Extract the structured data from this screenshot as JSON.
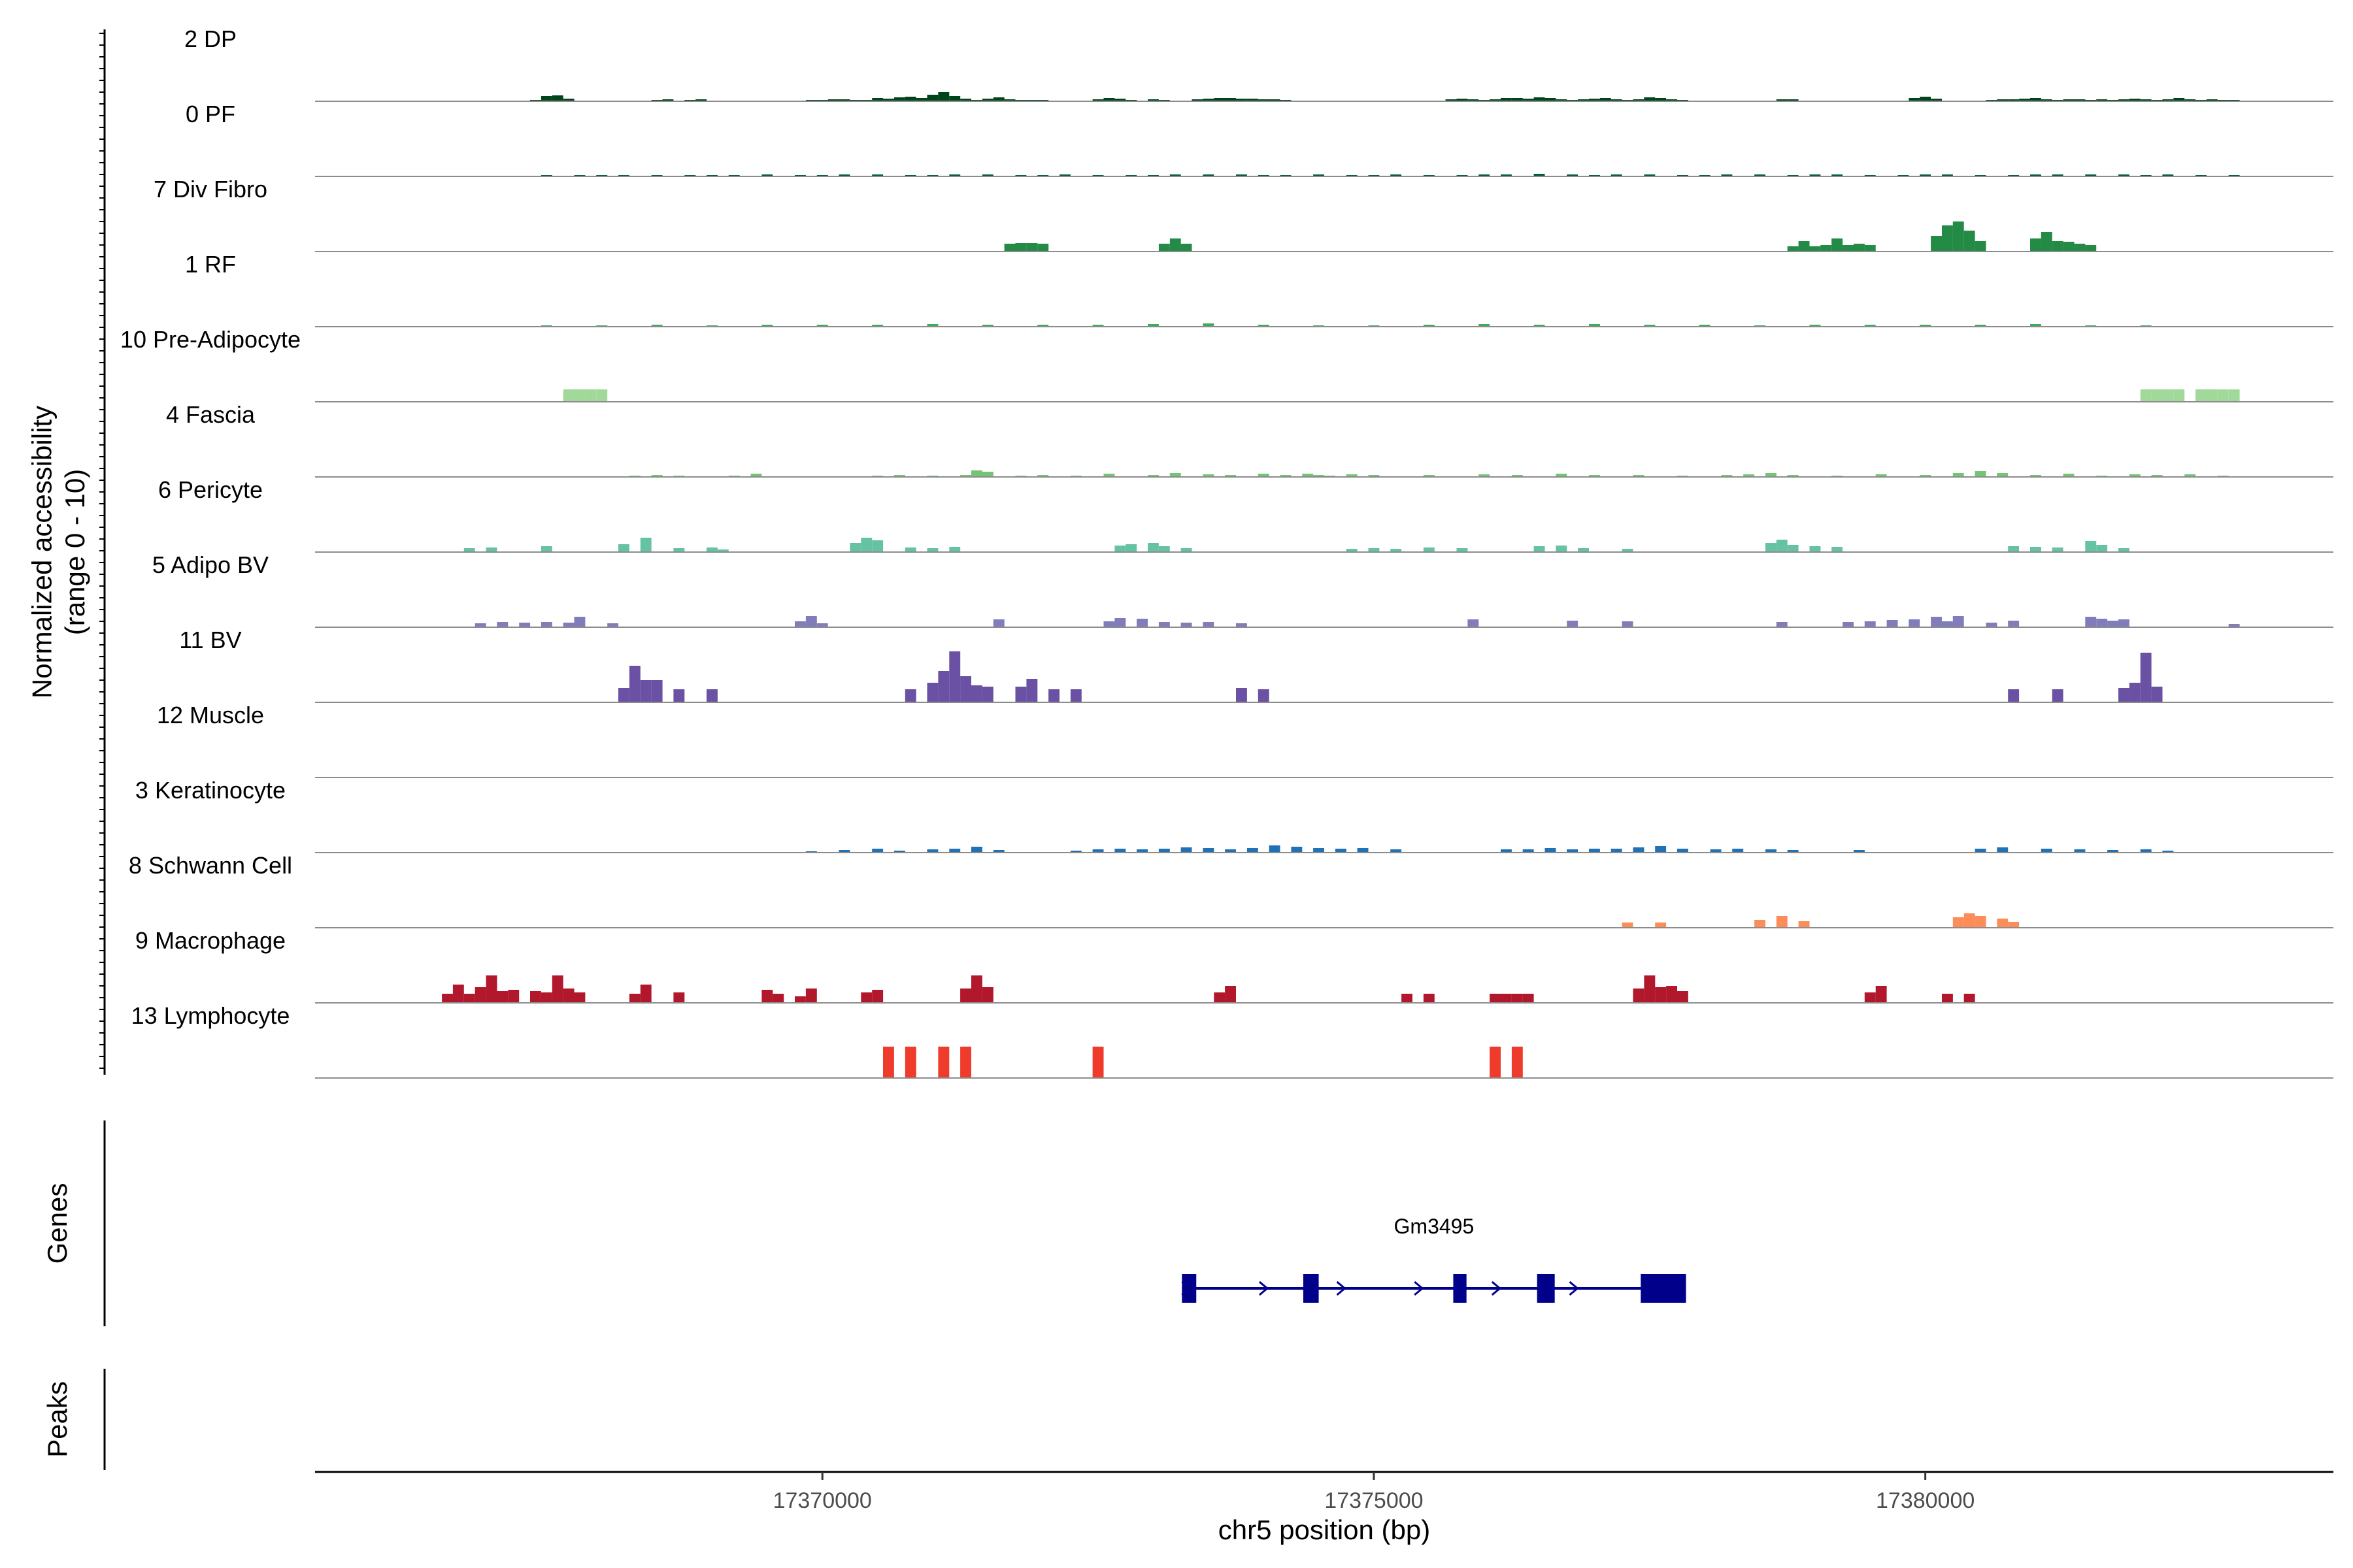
{
  "chart_data": {
    "type": "area",
    "ylabel": "Normalized accessibility\n(range 0 - 10)",
    "xlabel": "chr5 position (bp)",
    "xlim": [
      17365400,
      17383700
    ],
    "ylim": [
      0,
      10
    ],
    "x_ticks": [
      {
        "value": 17370000,
        "label": "17370000"
      },
      {
        "value": 17375000,
        "label": "17375000"
      },
      {
        "value": 17380000,
        "label": "17380000"
      }
    ],
    "panels": {
      "genes": "Genes",
      "peaks": "Peaks"
    },
    "genes": [
      {
        "name": "Gm3495",
        "strand": "+",
        "start": 17373260,
        "end": 17377830,
        "exons": [
          [
            17373260,
            17373390
          ],
          [
            17374360,
            17374500
          ],
          [
            17375720,
            17375840
          ],
          [
            17376480,
            17376640
          ],
          [
            17377420,
            17377830
          ]
        ],
        "color": "#00008b"
      }
    ],
    "series": [
      {
        "name": "2 DP",
        "color": "#00441b",
        "x": [
          17367400,
          17367500,
          17367600,
          17367700,
          17368500,
          17368600,
          17368800,
          17368900,
          17369900,
          17370000,
          17370100,
          17370200,
          17370300,
          17370400,
          17370500,
          17370600,
          17370700,
          17370800,
          17370900,
          17371000,
          17371100,
          17371200,
          17371300,
          17371400,
          17371500,
          17371600,
          17371700,
          17371800,
          17371900,
          17372000,
          17372500,
          17372600,
          17372700,
          17372800,
          17373000,
          17373100,
          17373400,
          17373500,
          17373600,
          17373700,
          17373800,
          17373900,
          17374000,
          17374100,
          17374200,
          17375700,
          17375800,
          17375900,
          17376000,
          17376100,
          17376200,
          17376300,
          17376400,
          17376500,
          17376600,
          17376700,
          17376800,
          17376900,
          17377000,
          17377100,
          17377200,
          17377300,
          17377400,
          17377500,
          17377600,
          17377700,
          17377800,
          17378700,
          17378800,
          17379900,
          17380000,
          17380100,
          17380600,
          17380700,
          17380800,
          17380900,
          17381000,
          17381100,
          17381200,
          17381300,
          17381400,
          17381500,
          17381600,
          17381700,
          17381800,
          17381900,
          17382000,
          17382100,
          17382200,
          17382300,
          17382400,
          17382500,
          17382600,
          17382700,
          17382800
        ],
        "y": [
          0.2,
          0.8,
          0.9,
          0.4,
          0.2,
          0.3,
          0.2,
          0.3,
          0.2,
          0.2,
          0.3,
          0.3,
          0.2,
          0.2,
          0.5,
          0.4,
          0.6,
          0.7,
          0.5,
          1.0,
          1.4,
          0.8,
          0.4,
          0.2,
          0.4,
          0.6,
          0.3,
          0.2,
          0.2,
          0.2,
          0.3,
          0.5,
          0.4,
          0.2,
          0.3,
          0.2,
          0.3,
          0.4,
          0.5,
          0.5,
          0.4,
          0.4,
          0.3,
          0.3,
          0.2,
          0.3,
          0.4,
          0.3,
          0.2,
          0.3,
          0.5,
          0.5,
          0.4,
          0.6,
          0.5,
          0.3,
          0.2,
          0.3,
          0.4,
          0.5,
          0.3,
          0.2,
          0.3,
          0.6,
          0.5,
          0.3,
          0.2,
          0.3,
          0.3,
          0.5,
          0.7,
          0.4,
          0.2,
          0.3,
          0.3,
          0.4,
          0.5,
          0.3,
          0.2,
          0.3,
          0.3,
          0.2,
          0.3,
          0.2,
          0.3,
          0.4,
          0.3,
          0.2,
          0.3,
          0.5,
          0.3,
          0.2,
          0.3,
          0.2,
          0.2
        ]
      },
      {
        "name": "0 PF",
        "color": "#005a32",
        "x": [
          17366300,
          17366500,
          17366800,
          17367000,
          17367500,
          17367800,
          17368000,
          17368200,
          17368500,
          17368800,
          17369000,
          17369200,
          17369500,
          17369800,
          17370000,
          17370200,
          17370500,
          17370800,
          17371000,
          17371200,
          17371500,
          17371800,
          17372000,
          17372200,
          17372500,
          17372800,
          17373000,
          17373200,
          17373500,
          17373800,
          17374000,
          17374200,
          17374500,
          17374800,
          17375000,
          17375200,
          17375500,
          17375800,
          17376000,
          17376200,
          17376500,
          17376800,
          17377000,
          17377200,
          17377500,
          17377800,
          17378000,
          17378200,
          17378500,
          17378800,
          17379000,
          17379200,
          17379500,
          17379800,
          17380000,
          17380200,
          17380500,
          17380800,
          17381000,
          17381200,
          17381500,
          17381800,
          17382000,
          17382200,
          17382500,
          17382800
        ],
        "y": [
          0.1,
          0.1,
          0.1,
          0.1,
          0.2,
          0.2,
          0.2,
          0.2,
          0.2,
          0.2,
          0.2,
          0.2,
          0.3,
          0.2,
          0.2,
          0.3,
          0.3,
          0.2,
          0.2,
          0.3,
          0.3,
          0.2,
          0.2,
          0.3,
          0.2,
          0.2,
          0.2,
          0.3,
          0.3,
          0.3,
          0.2,
          0.2,
          0.3,
          0.2,
          0.2,
          0.3,
          0.2,
          0.2,
          0.3,
          0.3,
          0.4,
          0.3,
          0.2,
          0.3,
          0.3,
          0.2,
          0.2,
          0.3,
          0.3,
          0.2,
          0.3,
          0.3,
          0.2,
          0.2,
          0.3,
          0.3,
          0.2,
          0.2,
          0.3,
          0.3,
          0.3,
          0.3,
          0.2,
          0.3,
          0.2,
          0.2
        ]
      },
      {
        "name": "7 Div Fibro",
        "color": "#238b45",
        "x": [
          17371700,
          17371800,
          17371900,
          17372000,
          17373100,
          17373200,
          17373300,
          17378800,
          17378900,
          17379000,
          17379100,
          17379200,
          17379300,
          17379400,
          17379500,
          17380100,
          17380200,
          17380300,
          17380400,
          17380500,
          17381000,
          17381100,
          17381200,
          17381300,
          17381400,
          17381500
        ],
        "y": [
          1.2,
          1.3,
          1.3,
          1.2,
          1.2,
          2.0,
          1.2,
          0.8,
          1.6,
          0.8,
          1.0,
          2.0,
          1.0,
          1.2,
          1.0,
          2.4,
          4.0,
          4.6,
          3.2,
          1.6,
          2.0,
          3.0,
          1.6,
          1.5,
          1.2,
          1.0
        ]
      },
      {
        "name": "1 RF",
        "color": "#41ab5d",
        "x": [
          17367000,
          17367500,
          17368000,
          17368500,
          17369000,
          17369500,
          17370000,
          17370500,
          17371000,
          17371500,
          17372000,
          17372500,
          17373000,
          17373500,
          17374000,
          17374500,
          17375000,
          17375500,
          17376000,
          17376500,
          17377000,
          17377500,
          17378000,
          17378500,
          17379000,
          17379500,
          17380000,
          17380500,
          17381000,
          17381500,
          17382000
        ],
        "y": [
          0.1,
          0.2,
          0.2,
          0.3,
          0.2,
          0.3,
          0.3,
          0.3,
          0.4,
          0.3,
          0.3,
          0.3,
          0.4,
          0.5,
          0.3,
          0.2,
          0.2,
          0.3,
          0.4,
          0.3,
          0.4,
          0.3,
          0.3,
          0.2,
          0.3,
          0.3,
          0.3,
          0.3,
          0.4,
          0.2,
          0.2
        ]
      },
      {
        "name": "10 Pre-Adipocyte",
        "color": "#a1d99b",
        "x": [
          17367700,
          17367800,
          17367900,
          17368000,
          17382000,
          17382100,
          17382200,
          17382300,
          17382500,
          17382600,
          17382700,
          17382800
        ],
        "y": [
          1.9,
          1.9,
          1.9,
          1.9,
          1.9,
          1.9,
          1.9,
          1.9,
          1.9,
          1.9,
          1.9,
          1.9
        ]
      },
      {
        "name": "4 Fascia",
        "color": "#74c476",
        "x": [
          17368300,
          17368500,
          17368700,
          17369200,
          17369400,
          17370500,
          17370700,
          17371000,
          17371300,
          17371400,
          17371500,
          17371800,
          17372000,
          17372300,
          17372600,
          17373000,
          17373200,
          17373500,
          17373700,
          17374000,
          17374200,
          17374400,
          17374500,
          17374600,
          17374800,
          17375000,
          17375500,
          17376000,
          17376300,
          17376700,
          17377000,
          17377400,
          17377800,
          17378200,
          17378400,
          17378600,
          17378800,
          17379200,
          17379600,
          17380000,
          17380300,
          17380500,
          17380700,
          17381000,
          17381300,
          17381600,
          17381900,
          17382100,
          17382400,
          17382700
        ],
        "y": [
          0.2,
          0.3,
          0.2,
          0.2,
          0.5,
          0.2,
          0.3,
          0.2,
          0.3,
          1.0,
          0.8,
          0.2,
          0.3,
          0.2,
          0.5,
          0.3,
          0.6,
          0.4,
          0.3,
          0.5,
          0.3,
          0.5,
          0.3,
          0.2,
          0.4,
          0.3,
          0.3,
          0.4,
          0.3,
          0.5,
          0.3,
          0.3,
          0.2,
          0.3,
          0.4,
          0.6,
          0.3,
          0.2,
          0.4,
          0.3,
          0.6,
          0.9,
          0.6,
          0.3,
          0.5,
          0.2,
          0.4,
          0.3,
          0.4,
          0.2
        ]
      },
      {
        "name": "6 Pericyte",
        "color": "#66c2a4",
        "x": [
          17366800,
          17367000,
          17367500,
          17368200,
          17368400,
          17368700,
          17369000,
          17369100,
          17370300,
          17370400,
          17370500,
          17370800,
          17371000,
          17371200,
          17372700,
          17372800,
          17373000,
          17373100,
          17373300,
          17374800,
          17375000,
          17375200,
          17375500,
          17375800,
          17376500,
          17376700,
          17376900,
          17377300,
          17378600,
          17378700,
          17378800,
          17379000,
          17379200,
          17380800,
          17381000,
          17381200,
          17381500,
          17381600,
          17381800
        ],
        "y": [
          0.6,
          0.7,
          0.9,
          1.2,
          2.2,
          0.6,
          0.7,
          0.4,
          1.4,
          2.2,
          1.8,
          0.7,
          0.6,
          0.8,
          1.0,
          1.2,
          1.4,
          0.9,
          0.6,
          0.5,
          0.6,
          0.5,
          0.7,
          0.6,
          0.9,
          1.0,
          0.6,
          0.5,
          1.4,
          1.9,
          1.1,
          0.9,
          0.8,
          0.9,
          0.8,
          0.7,
          1.7,
          1.1,
          0.6
        ]
      },
      {
        "name": "5 Adipo BV",
        "color": "#807dba",
        "x": [
          17366900,
          17367100,
          17367300,
          17367500,
          17367700,
          17367800,
          17368100,
          17369800,
          17369900,
          17370000,
          17371600,
          17372600,
          17372700,
          17372900,
          17373100,
          17373300,
          17373500,
          17373800,
          17375900,
          17376800,
          17377300,
          17378700,
          17379300,
          17379500,
          17379700,
          17379900,
          17380100,
          17380200,
          17380300,
          17380600,
          17380800,
          17381500,
          17381600,
          17381700,
          17381800,
          17382800
        ],
        "y": [
          0.6,
          0.8,
          0.7,
          0.8,
          0.7,
          1.6,
          0.6,
          0.9,
          1.7,
          0.6,
          1.2,
          0.9,
          1.4,
          1.3,
          0.8,
          0.7,
          0.8,
          0.6,
          1.2,
          1.0,
          0.9,
          0.8,
          0.8,
          0.9,
          1.1,
          1.2,
          1.6,
          0.9,
          1.7,
          0.7,
          1.0,
          1.6,
          1.3,
          1.0,
          1.2,
          0.5
        ]
      },
      {
        "name": "11 BV",
        "color": "#6a51a3",
        "x": [
          17368200,
          17368300,
          17368400,
          17368500,
          17368700,
          17369000,
          17370800,
          17371000,
          17371100,
          17371200,
          17371300,
          17371400,
          17371500,
          17371800,
          17371900,
          17372100,
          17372300,
          17373800,
          17374000,
          17380800,
          17381200,
          17381800,
          17381900,
          17382000,
          17382100
        ],
        "y": [
          2.2,
          5.6,
          3.4,
          3.4,
          2.0,
          2.0,
          2.0,
          3.0,
          4.8,
          7.8,
          4.0,
          2.6,
          2.4,
          2.4,
          3.6,
          2.0,
          2.0,
          2.2,
          2.0,
          2.0,
          2.0,
          2.2,
          3.0,
          7.6,
          2.4
        ]
      },
      {
        "name": "12 Muscle",
        "color": "#54278f",
        "x": [],
        "y": []
      },
      {
        "name": "3 Keratinocyte",
        "color": "#2171b5",
        "x": [
          17369900,
          17370200,
          17370500,
          17370700,
          17371000,
          17371200,
          17371400,
          17371600,
          17372300,
          17372500,
          17372700,
          17372900,
          17373100,
          17373300,
          17373500,
          17373700,
          17373900,
          17374100,
          17374300,
          17374500,
          17374700,
          17374900,
          17375200,
          17376200,
          17376400,
          17376600,
          17376800,
          17377000,
          17377200,
          17377400,
          17377600,
          17377800,
          17378100,
          17378300,
          17378600,
          17378800,
          17379400,
          17380500,
          17380700,
          17381100,
          17381400,
          17381700,
          17382000,
          17382200
        ],
        "y": [
          0.2,
          0.4,
          0.6,
          0.3,
          0.5,
          0.6,
          0.9,
          0.4,
          0.3,
          0.5,
          0.6,
          0.5,
          0.6,
          0.8,
          0.7,
          0.5,
          0.7,
          1.1,
          0.9,
          0.7,
          0.6,
          0.7,
          0.5,
          0.5,
          0.5,
          0.7,
          0.5,
          0.6,
          0.6,
          0.8,
          1.0,
          0.6,
          0.5,
          0.6,
          0.5,
          0.4,
          0.4,
          0.6,
          0.8,
          0.6,
          0.5,
          0.4,
          0.5,
          0.3
        ]
      },
      {
        "name": "8 Schwann Cell",
        "color": "#fc8d59",
        "x": [
          17377300,
          17377600,
          17378500,
          17378700,
          17378900,
          17380300,
          17380400,
          17380500,
          17380700,
          17380800
        ],
        "y": [
          0.8,
          0.8,
          1.2,
          1.8,
          1.0,
          1.6,
          2.2,
          1.8,
          1.4,
          0.9
        ]
      },
      {
        "name": "9 Macrophage",
        "color": "#b2182b",
        "x": [
          17366600,
          17366700,
          17366800,
          17366900,
          17367000,
          17367100,
          17367200,
          17367400,
          17367500,
          17367600,
          17367700,
          17367800,
          17368300,
          17368400,
          17368700,
          17369500,
          17369600,
          17369800,
          17369900,
          17370400,
          17370500,
          17371300,
          17371400,
          17371500,
          17373600,
          17373700,
          17375300,
          17375500,
          17376100,
          17376200,
          17376300,
          17376400,
          17377400,
          17377500,
          17377600,
          17377700,
          17377800,
          17379500,
          17379600,
          17380200,
          17380400
        ],
        "y": [
          1.4,
          2.8,
          1.4,
          2.4,
          4.2,
          1.8,
          2.0,
          1.8,
          1.6,
          4.2,
          2.2,
          1.6,
          1.4,
          2.8,
          1.6,
          2.0,
          1.4,
          1.0,
          2.2,
          1.6,
          2.0,
          2.2,
          4.2,
          2.4,
          1.6,
          2.6,
          1.4,
          1.4,
          1.4,
          1.4,
          1.4,
          1.4,
          2.2,
          4.2,
          2.4,
          2.6,
          1.8,
          1.6,
          2.6,
          1.4,
          1.4
        ]
      },
      {
        "name": "13 Lymphocyte",
        "color": "#ef3b2c",
        "x": [
          17370600,
          17370800,
          17371100,
          17371300,
          17372500,
          17376100,
          17376300
        ],
        "y": [
          4.8,
          4.8,
          4.8,
          4.8,
          4.8,
          4.8,
          4.8
        ]
      }
    ]
  }
}
